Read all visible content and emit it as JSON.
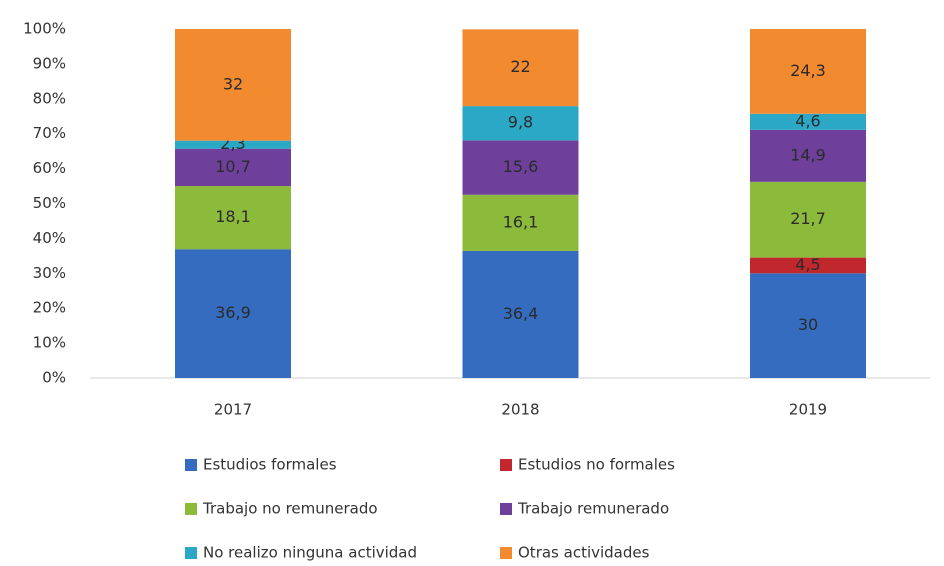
{
  "chart_data": {
    "type": "stacked_bar",
    "categories": [
      "2017",
      "2018",
      "2019"
    ],
    "series": [
      {
        "name": "Estudios formales",
        "color": "#356cbf",
        "values": [
          36.9,
          36.4,
          30
        ],
        "value_labels": [
          "36,9",
          "36,4",
          "30"
        ]
      },
      {
        "name": "Estudios no formales",
        "color": "#c0282d",
        "values": [
          null,
          null,
          4.5
        ],
        "value_labels": [
          null,
          null,
          "4,5"
        ]
      },
      {
        "name": "Trabajo no remunerado",
        "color": "#8cbb3c",
        "values": [
          18.1,
          16.1,
          21.7
        ],
        "value_labels": [
          "18,1",
          "16,1",
          "21,7"
        ]
      },
      {
        "name": "Trabajo remunerado",
        "color": "#6e409b",
        "values": [
          10.7,
          15.6,
          14.9
        ],
        "value_labels": [
          "10,7",
          "15,6",
          "14,9"
        ]
      },
      {
        "name": "No realizo ninguna actividad",
        "color": "#2aa8c6",
        "values": [
          2.3,
          9.8,
          4.6
        ],
        "value_labels": [
          "2,3",
          "9,8",
          "4,6"
        ]
      },
      {
        "name": "Otras actividades",
        "color": "#f28a30",
        "values": [
          32,
          22,
          24.3
        ],
        "value_labels": [
          "32",
          "22",
          "24,3"
        ]
      }
    ],
    "ylim": [
      0,
      100
    ],
    "yticks": [
      {
        "value": 0,
        "label": "0%"
      },
      {
        "value": 10,
        "label": "10%"
      },
      {
        "value": 20,
        "label": "20%"
      },
      {
        "value": 30,
        "label": "30%"
      },
      {
        "value": 40,
        "label": "40%"
      },
      {
        "value": 50,
        "label": "50%"
      },
      {
        "value": 60,
        "label": "60%"
      },
      {
        "value": 70,
        "label": "70%"
      },
      {
        "value": 80,
        "label": "80%"
      },
      {
        "value": 90,
        "label": "90%"
      },
      {
        "value": 100,
        "label": "100%"
      }
    ],
    "grid": false
  }
}
